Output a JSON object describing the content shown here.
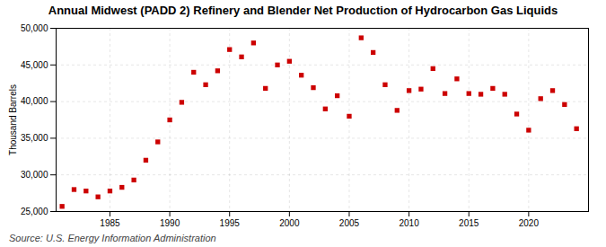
{
  "chart_data": {
    "type": "scatter",
    "title": "Annual Midwest (PADD 2) Refinery and Blender Net Production of Hydrocarbon Gas Liquids",
    "ylabel": "Thousand Barrels",
    "source": "Source: U.S. Energy Information Administration",
    "color": "#cc0000",
    "marker": "square",
    "grid": true,
    "xlim": [
      1980.5,
      2025
    ],
    "xticks": [
      1985,
      1990,
      1995,
      2000,
      2005,
      2010,
      2015,
      2020
    ],
    "ylim": [
      25000,
      50000
    ],
    "yticks": [
      {
        "value": 25000,
        "label": "25,000"
      },
      {
        "value": 30000,
        "label": "30,000"
      },
      {
        "value": 35000,
        "label": "35,000"
      },
      {
        "value": 40000,
        "label": "40,000"
      },
      {
        "value": 45000,
        "label": "45,000"
      },
      {
        "value": 50000,
        "label": "50,000"
      }
    ],
    "x": [
      1981,
      1982,
      1983,
      1984,
      1985,
      1986,
      1987,
      1988,
      1989,
      1990,
      1991,
      1992,
      1993,
      1994,
      1995,
      1996,
      1997,
      1998,
      1999,
      2000,
      2001,
      2002,
      2003,
      2004,
      2005,
      2006,
      2007,
      2008,
      2009,
      2010,
      2011,
      2012,
      2013,
      2014,
      2015,
      2016,
      2017,
      2018,
      2019,
      2020,
      2021,
      2022,
      2023,
      2024
    ],
    "values": [
      25700,
      28000,
      27800,
      27000,
      27800,
      28300,
      29300,
      32000,
      34500,
      37500,
      39900,
      44000,
      42300,
      44200,
      47100,
      46100,
      48000,
      41800,
      45000,
      45500,
      43600,
      41900,
      39000,
      40800,
      38000,
      48700,
      46700,
      42300,
      38800,
      41500,
      41700,
      44500,
      41100,
      43100,
      41100,
      41000,
      41800,
      41000,
      38300,
      36100,
      40400,
      41500,
      39600,
      36300
    ]
  }
}
